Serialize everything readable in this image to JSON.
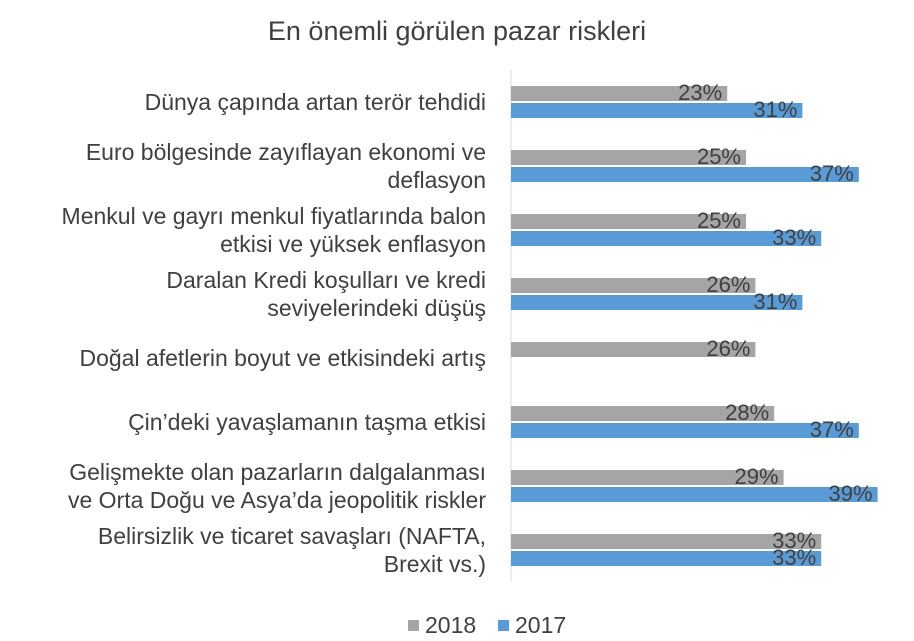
{
  "chart_data": {
    "type": "bar",
    "orientation": "horizontal",
    "title": "En önemli görülen pazar riskleri",
    "categories": [
      [
        "Dünya çapında artan terör tehdidi"
      ],
      [
        "Euro bölgesinde zayıflayan ekonomi ve",
        "deflasyon"
      ],
      [
        "Menkul ve gayrı menkul fiyatlarında balon",
        "etkisi ve yüksek enflasyon"
      ],
      [
        "Daralan Kredi koşulları ve kredi",
        "seviyelerindeki düşüş"
      ],
      [
        "Doğal afetlerin boyut ve etkisindeki artış"
      ],
      [
        "Çin’deki yavaşlamanın taşma etkisi"
      ],
      [
        "Gelişmekte olan pazarların dalgalanması",
        "ve Orta Doğu ve Asya’da jeopolitik riskler"
      ],
      [
        "Belirsizlik ve ticaret savaşları (NAFTA,",
        "Brexit vs.)"
      ]
    ],
    "series": [
      {
        "name": "2018",
        "color": "#a5a5a5",
        "values": [
          23,
          25,
          25,
          26,
          26,
          28,
          29,
          33
        ]
      },
      {
        "name": "2017",
        "color": "#5b9bd5",
        "values": [
          31,
          37,
          33,
          31,
          null,
          37,
          39,
          33
        ]
      }
    ],
    "value_suffix": "%",
    "xlim": [
      0,
      40
    ],
    "grid": false,
    "legend_position": "bottom"
  }
}
